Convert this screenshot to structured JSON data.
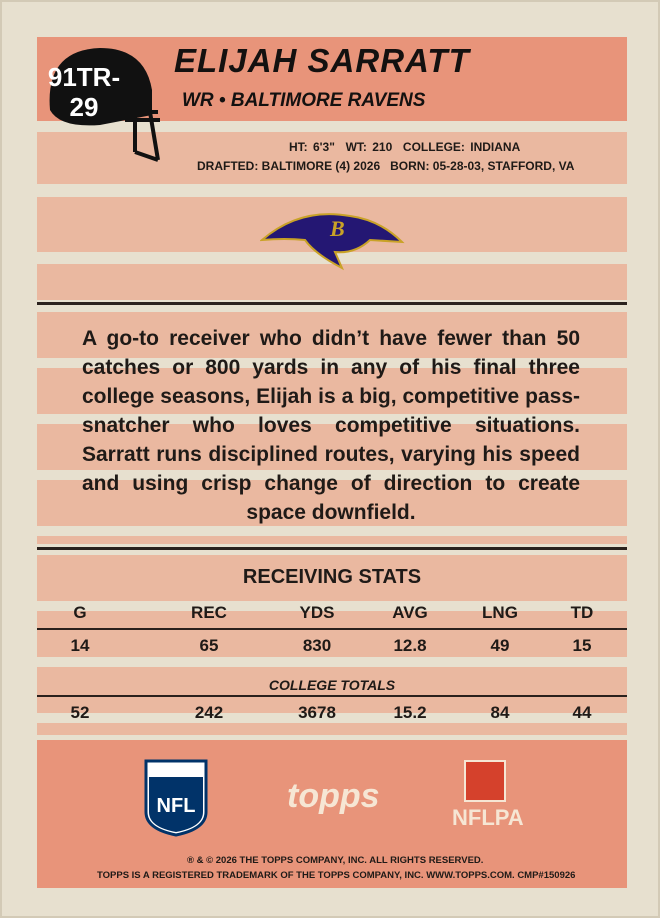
{
  "card_number": [
    "91TR-",
    "29"
  ],
  "header": {
    "name": "ELIJAH SARRATT",
    "position_team": "WR • BALTIMORE RAVENS"
  },
  "bio": {
    "line1": [
      "HT: 6'3\"",
      "WT: 210",
      "COLLEGE: INDIANA"
    ],
    "line2": [
      "DRAFTED: BALTIMORE (4) 2026",
      "BORN: 05-28-03, STAFFORD, VA"
    ]
  },
  "team_logo_letter": "B",
  "description": "A go-to receiver who didn’t have fewer than 50 catches or 800 yards in any of his final three college seasons, Elijah is a big, competitive pass-snatcher who loves competitive situations. Sarratt runs disciplined routes, varying his speed and using crisp change of direction to create space downfield.",
  "stats": {
    "title": "RECEIVING STATS",
    "headers": [
      "G",
      "REC",
      "YDS",
      "AVG",
      "LNG",
      "TD"
    ],
    "row": [
      14,
      65,
      830,
      12.8,
      49,
      15
    ],
    "totals_label": "COLLEGE TOTALS",
    "totals": [
      52,
      242,
      3678,
      15.2,
      84,
      44
    ]
  },
  "logos": {
    "nfl": "NFL",
    "topps": "topps",
    "nflpa": "NFLPA"
  },
  "footer": [
    "® & © 2026 THE TOPPS COMPANY, INC. ALL RIGHTS RESERVED.",
    "TOPPS IS A REGISTERED TRADEMARK OF THE TOPPS COMPANY, INC. WWW.TOPPS.COM. CMP#150926"
  ]
}
